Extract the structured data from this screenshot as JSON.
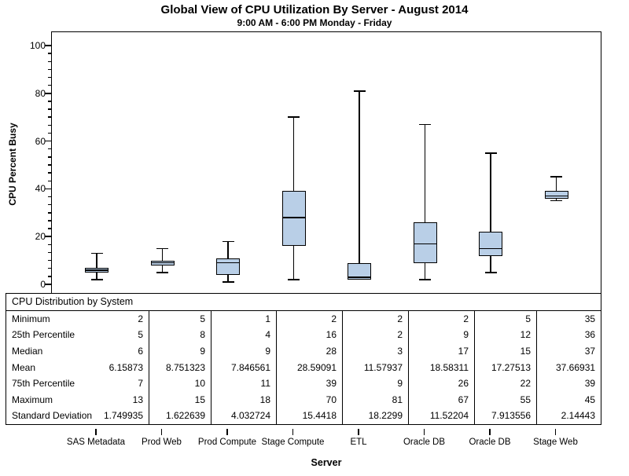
{
  "chart_data": {
    "type": "boxplot",
    "title": "Global View of CPU Utilization By Server - August 2014",
    "subtitle": "9:00 AM - 6:00 PM Monday - Friday",
    "xlabel": "Server",
    "ylabel": "CPU Percent Busy",
    "ylim": [
      0,
      105
    ],
    "yticks": [
      0,
      20,
      40,
      60,
      80,
      100
    ],
    "minor_ticks_between_majors": 5,
    "grid": false,
    "categories": [
      "SAS Metadata",
      "Prod Web",
      "Prod Compute",
      "Stage Compute",
      "ETL",
      "Oracle DB",
      "Oracle DB",
      "Stage Web"
    ],
    "series": [
      {
        "name": "SAS Metadata",
        "min": 2,
        "q1": 5,
        "median": 6,
        "q3": 7,
        "max": 13,
        "mean": 6.15873,
        "stddev": 1.749935
      },
      {
        "name": "Prod Web",
        "min": 5,
        "q1": 8,
        "median": 9,
        "q3": 10,
        "max": 15,
        "mean": 8.751323,
        "stddev": 1.622639
      },
      {
        "name": "Prod Compute",
        "min": 1,
        "q1": 4,
        "median": 9,
        "q3": 11,
        "max": 18,
        "mean": 7.846561,
        "stddev": 4.032724
      },
      {
        "name": "Stage Compute",
        "min": 2,
        "q1": 16,
        "median": 28,
        "q3": 39,
        "max": 70,
        "mean": 28.59091,
        "stddev": 15.4418
      },
      {
        "name": "ETL",
        "min": 2,
        "q1": 2,
        "median": 3,
        "q3": 9,
        "max": 81,
        "mean": 11.57937,
        "stddev": 18.2299
      },
      {
        "name": "Oracle DB",
        "min": 2,
        "q1": 9,
        "median": 17,
        "q3": 26,
        "max": 67,
        "mean": 18.58311,
        "stddev": 11.52204
      },
      {
        "name": "Oracle DB",
        "min": 5,
        "q1": 12,
        "median": 15,
        "q3": 22,
        "max": 55,
        "mean": 17.27513,
        "stddev": 7.913556
      },
      {
        "name": "Stage Web",
        "min": 35,
        "q1": 36,
        "median": 37,
        "q3": 39,
        "max": 45,
        "mean": 37.66931,
        "stddev": 2.14443
      }
    ]
  },
  "table": {
    "header": "CPU Distribution by System",
    "row_labels": [
      "Minimum",
      "25th Percentile",
      "Median",
      "Mean",
      "75th Percentile",
      "Maximum",
      "Standard Deviation"
    ],
    "rows": [
      [
        "2",
        "5",
        "1",
        "2",
        "2",
        "2",
        "5",
        "35"
      ],
      [
        "5",
        "8",
        "4",
        "16",
        "2",
        "9",
        "12",
        "36"
      ],
      [
        "6",
        "9",
        "9",
        "28",
        "3",
        "17",
        "15",
        "37"
      ],
      [
        "6.15873",
        "8.751323",
        "7.846561",
        "28.59091",
        "11.57937",
        "18.58311",
        "17.27513",
        "37.66931"
      ],
      [
        "7",
        "10",
        "11",
        "39",
        "9",
        "26",
        "22",
        "39"
      ],
      [
        "13",
        "15",
        "18",
        "70",
        "81",
        "67",
        "55",
        "45"
      ],
      [
        "1.749935",
        "1.622639",
        "4.032724",
        "15.4418",
        "18.2299",
        "11.52204",
        "7.913556",
        "2.14443"
      ]
    ]
  },
  "colors": {
    "box_fill": "#b9cfe7",
    "line": "#000000",
    "text": "#000000"
  }
}
